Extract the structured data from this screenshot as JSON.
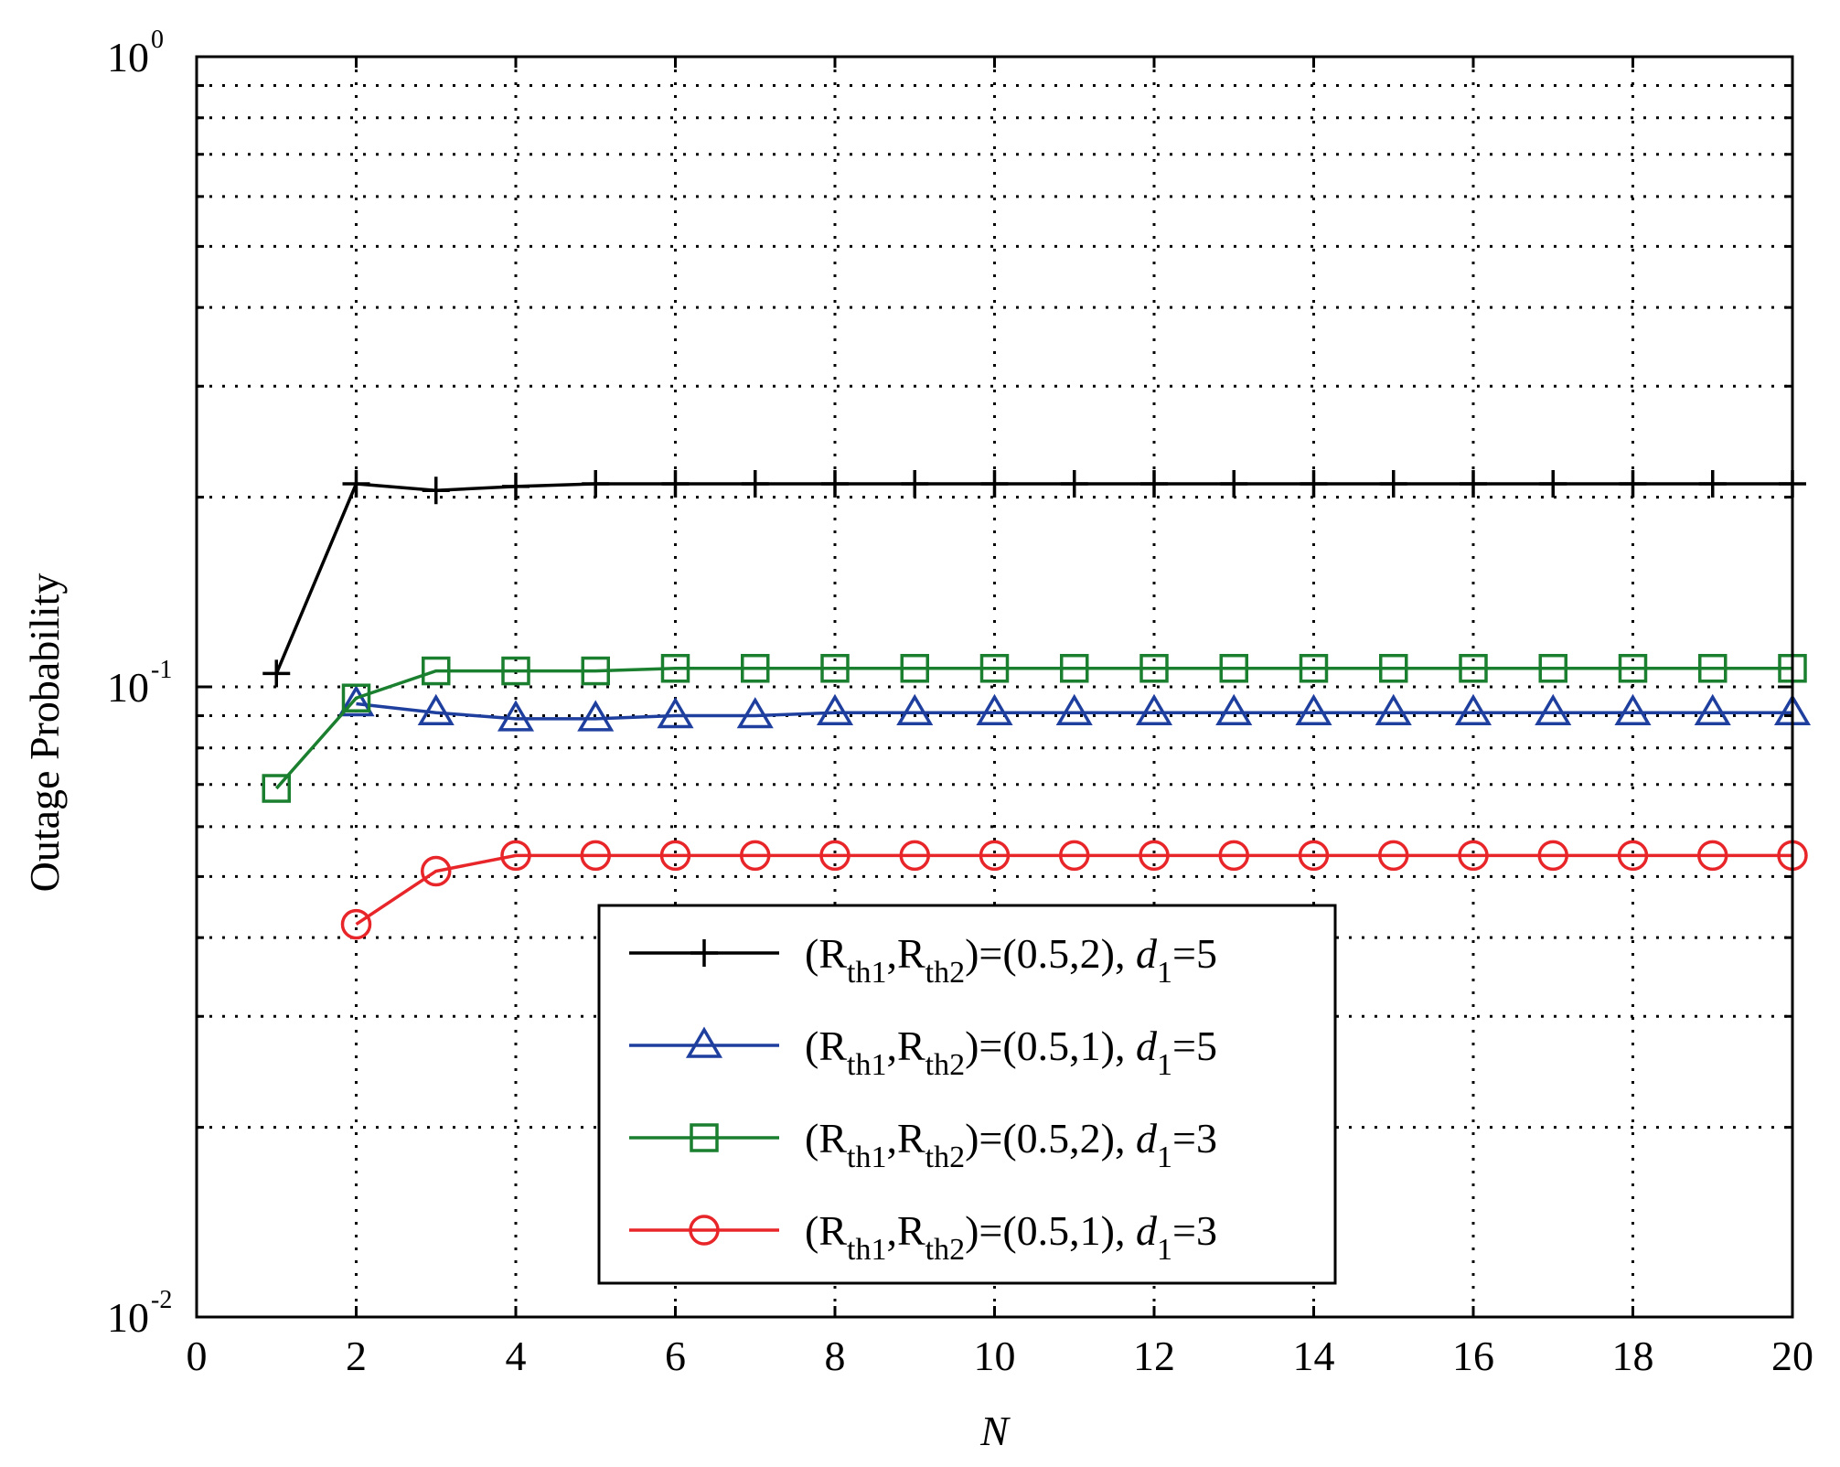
{
  "chart_data": {
    "type": "line",
    "title": "",
    "xlabel": "N",
    "ylabel": "Outage Probability",
    "xlim": [
      0,
      20
    ],
    "ylim": [
      0.01,
      1
    ],
    "yscale": "log",
    "grid": true,
    "xticks": [
      0,
      2,
      4,
      6,
      8,
      10,
      12,
      14,
      16,
      18,
      20
    ],
    "xtick_labels": [
      "0",
      "2",
      "4",
      "6",
      "8",
      "10",
      "12",
      "14",
      "16",
      "18",
      "20"
    ],
    "yticks": [
      {
        "value": 0.01,
        "base": "10",
        "exp": "-2"
      },
      {
        "value": 0.1,
        "base": "10",
        "exp": "-1"
      },
      {
        "value": 1,
        "base": "10",
        "exp": "0"
      }
    ],
    "legend_position": "lower-center",
    "series": [
      {
        "name": "(R_th1,R_th2)=(0.5,2), d_1=5",
        "legend": {
          "pre": "(R",
          "s1": "th1",
          "mid": ",R",
          "s2": "th2",
          "post": ")=(0.5,2),  ",
          "d": "d",
          "dsub": "1",
          "deq": "=5"
        },
        "color": "#000000",
        "marker": "plus",
        "x": [
          1,
          2,
          3,
          4,
          5,
          6,
          7,
          8,
          9,
          10,
          11,
          12,
          13,
          14,
          15,
          16,
          17,
          18,
          19,
          20
        ],
        "y": [
          0.105,
          0.21,
          0.205,
          0.208,
          0.21,
          0.21,
          0.21,
          0.21,
          0.21,
          0.21,
          0.21,
          0.21,
          0.21,
          0.21,
          0.21,
          0.21,
          0.21,
          0.21,
          0.21,
          0.21
        ]
      },
      {
        "name": "(R_th1,R_th2)=(0.5,1), d_1=5",
        "legend": {
          "pre": "(R",
          "s1": "th1",
          "mid": ",R",
          "s2": "th2",
          "post": ")=(0.5,1),  ",
          "d": "d",
          "dsub": "1",
          "deq": "=5"
        },
        "color": "#1f3f9f",
        "marker": "triangle",
        "x": [
          2,
          3,
          4,
          5,
          6,
          7,
          8,
          9,
          10,
          11,
          12,
          13,
          14,
          15,
          16,
          17,
          18,
          19,
          20
        ],
        "y": [
          0.094,
          0.091,
          0.089,
          0.089,
          0.09,
          0.09,
          0.091,
          0.091,
          0.091,
          0.091,
          0.091,
          0.091,
          0.091,
          0.091,
          0.091,
          0.091,
          0.091,
          0.091,
          0.091
        ]
      },
      {
        "name": "(R_th1,R_th2)=(0.5,2), d_1=3",
        "legend": {
          "pre": "(R",
          "s1": "th1",
          "mid": ",R",
          "s2": "th2",
          "post": ")=(0.5,2),  ",
          "d": "d",
          "dsub": "1",
          "deq": "=3"
        },
        "color": "#1a7f2e",
        "marker": "square",
        "x": [
          1,
          2,
          3,
          4,
          5,
          6,
          7,
          8,
          9,
          10,
          11,
          12,
          13,
          14,
          15,
          16,
          17,
          18,
          19,
          20
        ],
        "y": [
          0.069,
          0.096,
          0.106,
          0.106,
          0.106,
          0.107,
          0.107,
          0.107,
          0.107,
          0.107,
          0.107,
          0.107,
          0.107,
          0.107,
          0.107,
          0.107,
          0.107,
          0.107,
          0.107,
          0.107
        ]
      },
      {
        "name": "(R_th1,R_th2)=(0.5,1), d_1=3",
        "legend": {
          "pre": "(R",
          "s1": "th1",
          "mid": ",R",
          "s2": "th2",
          "post": ")=(0.5,1),  ",
          "d": "d",
          "dsub": "1",
          "deq": "=3"
        },
        "color": "#e8262a",
        "marker": "circle",
        "x": [
          2,
          3,
          4,
          5,
          6,
          7,
          8,
          9,
          10,
          11,
          12,
          13,
          14,
          15,
          16,
          17,
          18,
          19,
          20
        ],
        "y": [
          0.042,
          0.051,
          0.054,
          0.054,
          0.054,
          0.054,
          0.054,
          0.054,
          0.054,
          0.054,
          0.054,
          0.054,
          0.054,
          0.054,
          0.054,
          0.054,
          0.054,
          0.054,
          0.054
        ]
      }
    ]
  }
}
